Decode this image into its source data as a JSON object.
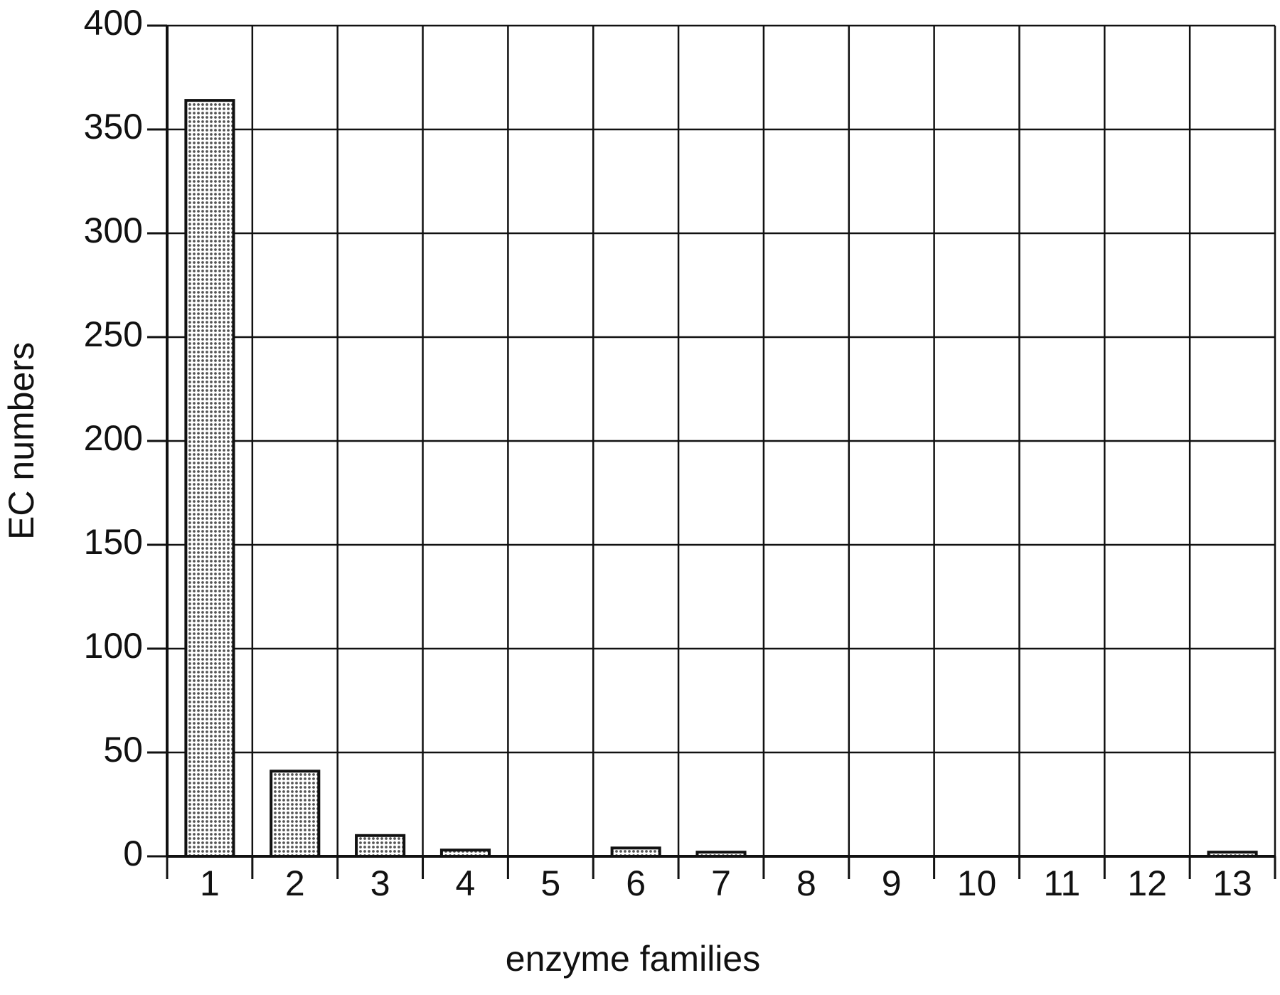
{
  "chart_data": {
    "type": "bar",
    "x_label": "enzyme families",
    "y_label": "EC numbers",
    "categories": [
      "1",
      "2",
      "3",
      "4",
      "5",
      "6",
      "7",
      "8",
      "9",
      "10",
      "11",
      "12",
      "13"
    ],
    "values": [
      364,
      41,
      10,
      3,
      0,
      4,
      2,
      0,
      0,
      0,
      0,
      0,
      2
    ],
    "color": "#555555",
    "ylim": [
      0,
      400
    ],
    "yticks": [
      0,
      50,
      100,
      150,
      200,
      250,
      300,
      350,
      400
    ],
    "grid": true
  }
}
